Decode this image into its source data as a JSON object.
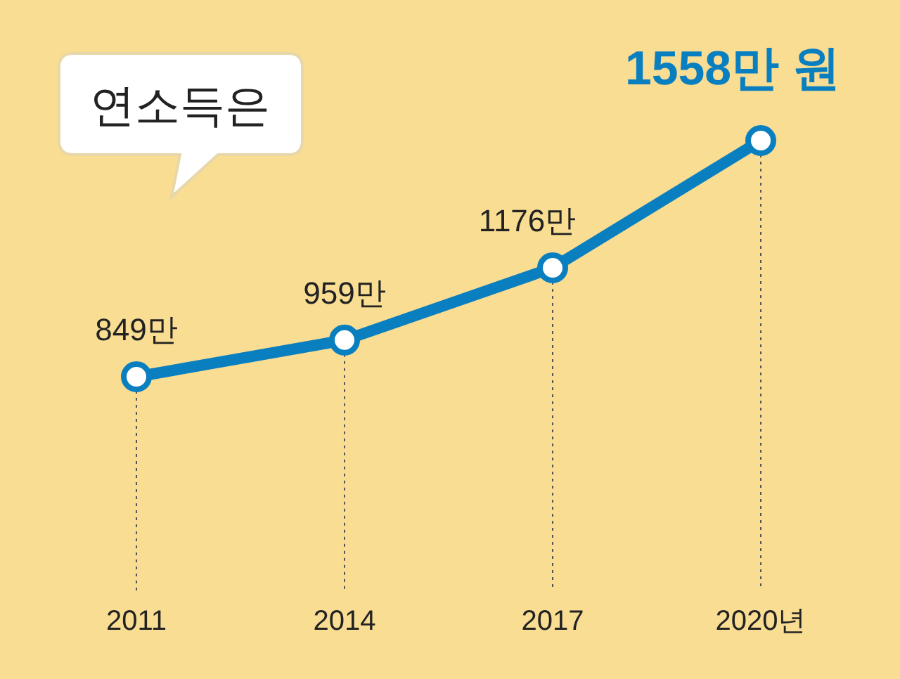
{
  "chart_data": {
    "type": "line",
    "title": "연소득은",
    "categories": [
      "2011",
      "2014",
      "2017",
      "2020년"
    ],
    "series": [
      {
        "color": "#0a7fc0",
        "values": [
          849,
          959,
          1176,
          1558
        ],
        "value_labels": [
          "849만",
          "959만",
          "1176만",
          "1558만 원"
        ]
      }
    ],
    "grid": "x",
    "marker": "circle",
    "line_style": "solid"
  }
}
